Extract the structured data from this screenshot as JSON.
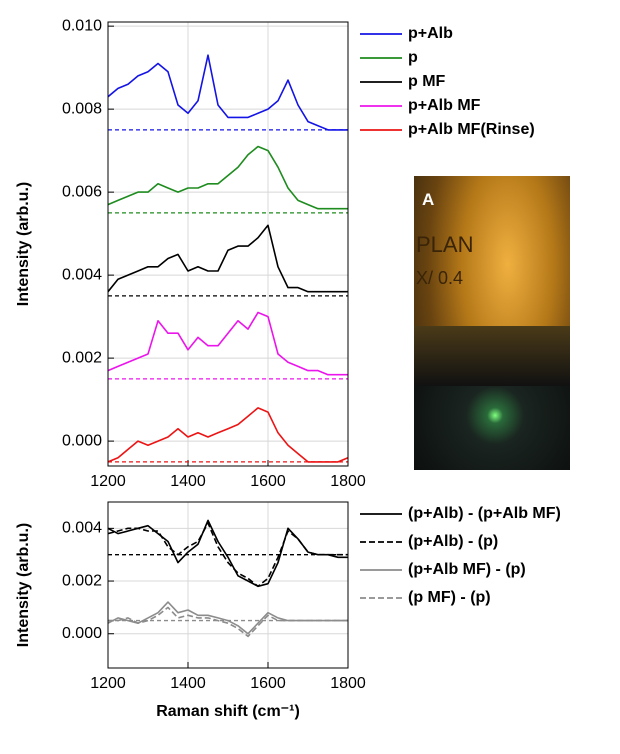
{
  "chart_data": [
    {
      "type": "line",
      "ylabel": "Intensity (arb.u.)",
      "x": [
        1200,
        1225,
        1250,
        1275,
        1300,
        1325,
        1350,
        1375,
        1400,
        1425,
        1450,
        1475,
        1500,
        1525,
        1550,
        1575,
        1600,
        1625,
        1650,
        1675,
        1700,
        1725,
        1750,
        1775,
        1800
      ],
      "xlim": [
        1200,
        1800
      ],
      "xticks": [
        1200,
        1400,
        1600,
        1800
      ],
      "ylim": [
        -0.0006,
        0.0101
      ],
      "yticks": [
        {
          "value": 0,
          "label": "0.000"
        },
        {
          "value": 0.002,
          "label": "0.002"
        },
        {
          "value": 0.004,
          "label": "0.004"
        },
        {
          "value": 0.006,
          "label": "0.006"
        },
        {
          "value": 0.008,
          "label": "0.008"
        },
        {
          "value": 0.01,
          "label": "0.010"
        }
      ],
      "grid": true,
      "legend": "right",
      "series": [
        {
          "name": "p+Alb",
          "color": "#1414e6",
          "dash": false,
          "baseline": 0.0075,
          "values": [
            0.0083,
            0.0085,
            0.0086,
            0.0088,
            0.0089,
            0.0091,
            0.0089,
            0.0081,
            0.0079,
            0.0082,
            0.0093,
            0.0081,
            0.0078,
            0.0078,
            0.0078,
            0.0079,
            0.008,
            0.0082,
            0.0087,
            0.0081,
            0.0077,
            0.0076,
            0.0075,
            0.0075,
            0.0075
          ]
        },
        {
          "name": "p",
          "color": "#1e8c1e",
          "dash": false,
          "baseline": 0.0055,
          "values": [
            0.0057,
            0.0058,
            0.0059,
            0.006,
            0.006,
            0.0062,
            0.0061,
            0.006,
            0.0061,
            0.0061,
            0.0062,
            0.0062,
            0.0064,
            0.0066,
            0.0069,
            0.0071,
            0.007,
            0.0066,
            0.0061,
            0.0058,
            0.0057,
            0.0056,
            0.0056,
            0.0056,
            0.0056
          ]
        },
        {
          "name": "p MF",
          "color": "#000000",
          "dash": false,
          "baseline": 0.0035,
          "values": [
            0.0036,
            0.0039,
            0.004,
            0.0041,
            0.0042,
            0.0042,
            0.0044,
            0.0045,
            0.0041,
            0.0042,
            0.0041,
            0.0041,
            0.0046,
            0.0047,
            0.0047,
            0.0049,
            0.0052,
            0.0042,
            0.0037,
            0.0037,
            0.0036,
            0.0036,
            0.0036,
            0.0036,
            0.0036
          ]
        },
        {
          "name": "p+Alb MF",
          "color": "#ec14ec",
          "dash": false,
          "baseline": 0.0015,
          "values": [
            0.0017,
            0.0018,
            0.0019,
            0.002,
            0.0021,
            0.0029,
            0.0026,
            0.0026,
            0.0022,
            0.0025,
            0.0023,
            0.0023,
            0.0026,
            0.0029,
            0.0027,
            0.0031,
            0.003,
            0.0021,
            0.0019,
            0.0018,
            0.0017,
            0.0017,
            0.0016,
            0.0016,
            0.0016
          ]
        },
        {
          "name": "p+Alb MF(Rinse)",
          "color": "#ec1414",
          "dash": false,
          "baseline": -0.0005,
          "values": [
            -0.0005,
            -0.0004,
            -0.0002,
            0.0,
            -0.0001,
            0.0,
            0.0001,
            0.0003,
            0.0001,
            0.0002,
            0.0001,
            0.0002,
            0.0003,
            0.0004,
            0.0006,
            0.0008,
            0.0007,
            0.0002,
            -0.0001,
            -0.0003,
            -0.0005,
            -0.0005,
            -0.0005,
            -0.0005,
            -0.0004
          ]
        }
      ]
    },
    {
      "type": "line",
      "ylabel": "Intensity (arb.u.)",
      "xlabel": "Raman shift (cm⁻¹)",
      "x": [
        1200,
        1225,
        1250,
        1275,
        1300,
        1325,
        1350,
        1375,
        1400,
        1425,
        1450,
        1475,
        1500,
        1525,
        1550,
        1575,
        1600,
        1625,
        1650,
        1675,
        1700,
        1725,
        1750,
        1775,
        1800
      ],
      "xlim": [
        1200,
        1800
      ],
      "xticks": [
        1200,
        1400,
        1600,
        1800
      ],
      "ylim": [
        -0.0013,
        0.005
      ],
      "yticks": [
        {
          "value": 0,
          "label": "0.000"
        },
        {
          "value": 0.002,
          "label": "0.002"
        },
        {
          "value": 0.004,
          "label": "0.004"
        }
      ],
      "grid": true,
      "legend": "right",
      "series": [
        {
          "name": "(p+Alb) - (p+Alb MF)",
          "color": "#000000",
          "dash": false,
          "baseline": 0.003,
          "values": [
            0.004,
            0.0038,
            0.0039,
            0.004,
            0.0041,
            0.0038,
            0.0035,
            0.0027,
            0.0031,
            0.0034,
            0.0043,
            0.0035,
            0.0029,
            0.0022,
            0.002,
            0.0018,
            0.0019,
            0.0027,
            0.004,
            0.0036,
            0.0031,
            0.003,
            0.003,
            0.0029,
            0.0029
          ]
        },
        {
          "name": "(p+Alb) - (p)",
          "color": "#000000",
          "dash": true,
          "values": [
            0.0038,
            0.0039,
            0.004,
            0.004,
            0.0039,
            0.0039,
            0.0033,
            0.003,
            0.0033,
            0.0035,
            0.0042,
            0.0033,
            0.0027,
            0.0023,
            0.0021,
            0.0018,
            0.0021,
            0.0029,
            0.0039,
            0.0036,
            0.0031,
            0.003,
            0.003,
            0.003,
            0.003
          ]
        },
        {
          "name": "(p+Alb MF) - (p)",
          "color": "#8c8c8c",
          "dash": false,
          "baseline": 0.0005,
          "values": [
            0.0004,
            0.0006,
            0.0005,
            0.0004,
            0.0006,
            0.0008,
            0.0012,
            0.0008,
            0.0009,
            0.0007,
            0.0007,
            0.0006,
            0.0005,
            0.0003,
            0.0,
            0.0004,
            0.0008,
            0.0006,
            0.0005,
            0.0005,
            0.0005,
            0.0005,
            0.0005,
            0.0005,
            0.0005
          ]
        },
        {
          "name": "(p MF) - (p)",
          "color": "#8c8c8c",
          "dash": true,
          "values": [
            0.0005,
            0.0005,
            0.0006,
            0.0004,
            0.0005,
            0.0007,
            0.001,
            0.0006,
            0.0007,
            0.0006,
            0.0006,
            0.0005,
            0.0004,
            0.0002,
            -0.0001,
            0.0003,
            0.0007,
            0.0005,
            0.0005,
            0.0005,
            0.0005,
            0.0005,
            0.0005,
            0.0005,
            0.0005
          ]
        }
      ]
    }
  ],
  "photo": {
    "panel_label": "A",
    "lens_texts": [
      "PLAN",
      "X/ 0.4"
    ]
  }
}
